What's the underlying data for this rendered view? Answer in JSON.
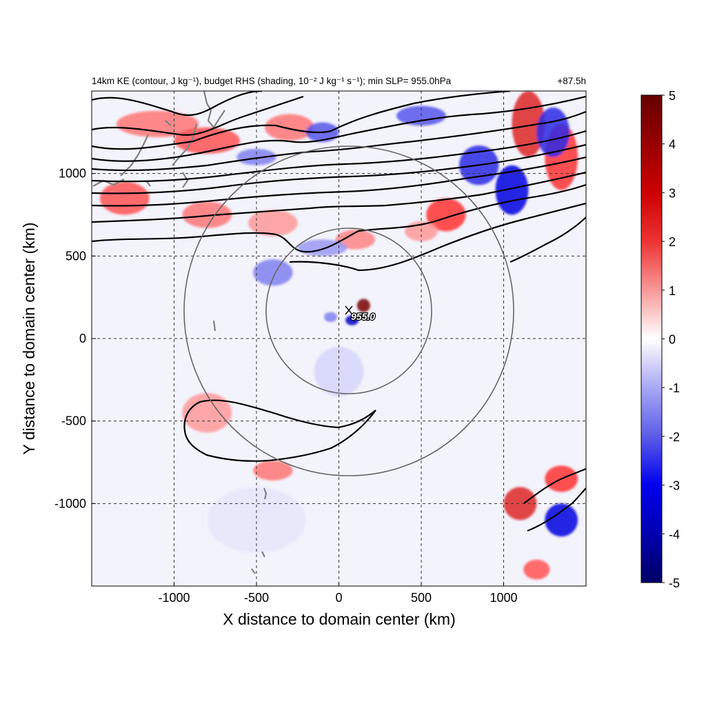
{
  "title_left": "14km KE (contour, J kg⁻¹), budget RHS (shading, 10⁻² J kg⁻¹ s⁻¹); min SLP= 955.0hPa",
  "title_right": "+87.5h",
  "colors": {
    "positive": "#cc0000",
    "negative": "#0000cc",
    "contour": "#000000",
    "circle": "#666666",
    "coast": "#808080"
  },
  "chart_data": {
    "type": "heatmap",
    "xlabel": "X distance to domain center (km)",
    "ylabel": "Y distance to domain center (km)",
    "xlim": [
      -1500,
      1500
    ],
    "ylim": [
      -1500,
      1500
    ],
    "xticks": [
      -1000,
      -500,
      0,
      500,
      1000
    ],
    "yticks": [
      -1000,
      -500,
      0,
      500,
      1000
    ],
    "xtick_labels": [
      "-1000",
      "-500",
      "0",
      "500",
      "1000"
    ],
    "ytick_labels": [
      "-1000",
      "-500",
      "0",
      "500",
      "1000"
    ],
    "grid": true,
    "colorbar": {
      "range": [
        -5,
        5
      ],
      "ticks": [
        5,
        4,
        3,
        2,
        1,
        0,
        -1,
        -2,
        -3,
        -4,
        -5
      ],
      "tick_labels": [
        "5",
        "4",
        "3",
        "2",
        "1",
        "0",
        "-1",
        "-2",
        "-3",
        "-4",
        "-5"
      ]
    },
    "storm_center": {
      "x": 60,
      "y": 170,
      "label": "955.0"
    },
    "radius_circles_km": [
      400,
      1000
    ],
    "circle_center": {
      "x": 60,
      "y": 170
    },
    "shading_features": [
      {
        "x": -1100,
        "y": 1300,
        "value": 2.0,
        "sx": 250,
        "sy": 80
      },
      {
        "x": -800,
        "y": 1200,
        "value": 2.5,
        "sx": 200,
        "sy": 80
      },
      {
        "x": -300,
        "y": 1280,
        "value": 2.0,
        "sx": 150,
        "sy": 80
      },
      {
        "x": -1300,
        "y": 850,
        "value": 2.5,
        "sx": 150,
        "sy": 100
      },
      {
        "x": -800,
        "y": 750,
        "value": 2.0,
        "sx": 150,
        "sy": 80
      },
      {
        "x": -400,
        "y": 700,
        "value": 1.5,
        "sx": 150,
        "sy": 80
      },
      {
        "x": 100,
        "y": 600,
        "value": 1.8,
        "sx": 120,
        "sy": 60
      },
      {
        "x": 650,
        "y": 750,
        "value": 3.0,
        "sx": 120,
        "sy": 100
      },
      {
        "x": 500,
        "y": 650,
        "value": 1.5,
        "sx": 100,
        "sy": 60
      },
      {
        "x": 1150,
        "y": 1300,
        "value": 3.5,
        "sx": 100,
        "sy": 200
      },
      {
        "x": 1350,
        "y": 1100,
        "value": 3.0,
        "sx": 100,
        "sy": 200
      },
      {
        "x": -500,
        "y": 1100,
        "value": -1.5,
        "sx": 120,
        "sy": 50
      },
      {
        "x": -100,
        "y": 1250,
        "value": -2.0,
        "sx": 100,
        "sy": 60
      },
      {
        "x": 500,
        "y": 1350,
        "value": -2.0,
        "sx": 150,
        "sy": 60
      },
      {
        "x": 850,
        "y": 1050,
        "value": -2.5,
        "sx": 120,
        "sy": 120
      },
      {
        "x": 1050,
        "y": 900,
        "value": -3.0,
        "sx": 100,
        "sy": 150
      },
      {
        "x": 1300,
        "y": 1250,
        "value": -2.5,
        "sx": 100,
        "sy": 150
      },
      {
        "x": -400,
        "y": 400,
        "value": -1.5,
        "sx": 120,
        "sy": 80
      },
      {
        "x": -100,
        "y": 550,
        "value": -1.2,
        "sx": 150,
        "sy": 50
      },
      {
        "x": 150,
        "y": 200,
        "value": 5.0,
        "sx": 40,
        "sy": 40
      },
      {
        "x": 80,
        "y": 110,
        "value": -3.5,
        "sx": 40,
        "sy": 30
      },
      {
        "x": -50,
        "y": 130,
        "value": -1.5,
        "sx": 40,
        "sy": 30
      },
      {
        "x": -800,
        "y": -450,
        "value": 1.5,
        "sx": 150,
        "sy": 120
      },
      {
        "x": -400,
        "y": -800,
        "value": 2.0,
        "sx": 120,
        "sy": 60
      },
      {
        "x": 1100,
        "y": -1000,
        "value": 3.5,
        "sx": 100,
        "sy": 100
      },
      {
        "x": 1350,
        "y": -850,
        "value": 3.0,
        "sx": 100,
        "sy": 80
      },
      {
        "x": 1350,
        "y": -1100,
        "value": -3.0,
        "sx": 100,
        "sy": 100
      },
      {
        "x": 1200,
        "y": -1400,
        "value": 2.5,
        "sx": 80,
        "sy": 60
      },
      {
        "x": 0,
        "y": -200,
        "value": -0.5,
        "sx": 150,
        "sy": 150
      },
      {
        "x": -500,
        "y": -1100,
        "value": -0.3,
        "sx": 300,
        "sy": 200
      }
    ]
  }
}
